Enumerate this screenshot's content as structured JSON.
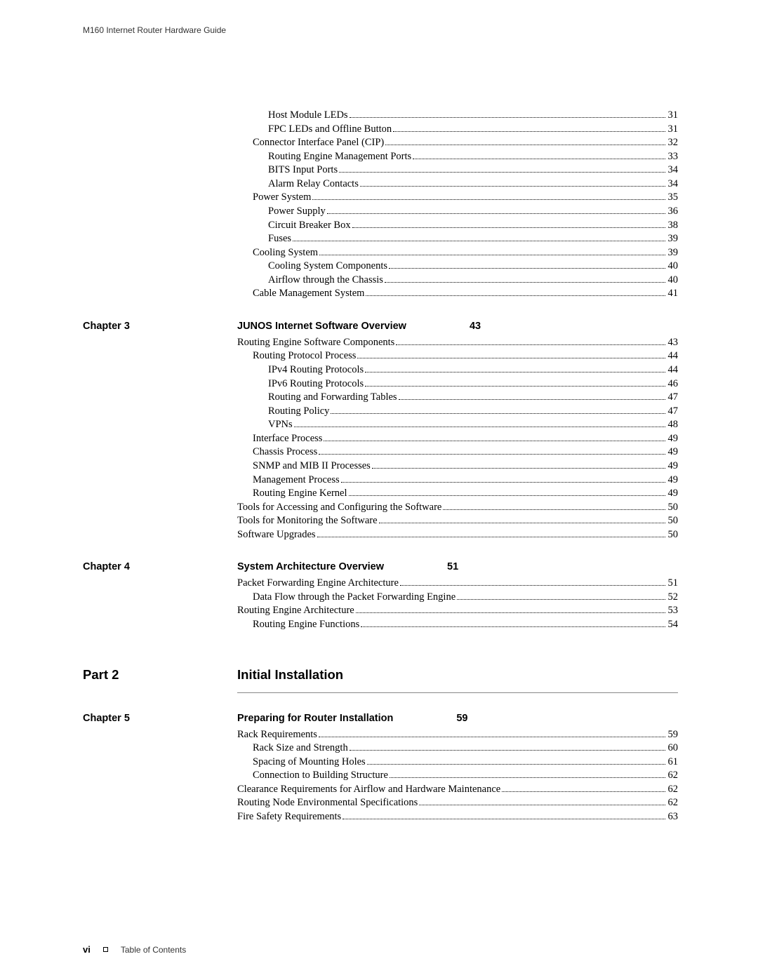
{
  "header": "M160 Internet Router Hardware Guide",
  "footer": {
    "page": "vi",
    "text": "Table of Contents"
  },
  "part": {
    "label": "Part 2",
    "title": "Initial Installation"
  },
  "chapters": {
    "pre": {
      "items": [
        {
          "indent": 2,
          "text": "Host Module LEDs",
          "page": "31"
        },
        {
          "indent": 2,
          "text": "FPC LEDs and Offline Button",
          "page": "31"
        },
        {
          "indent": 1,
          "text": "Connector Interface Panel (CIP)",
          "page": "32"
        },
        {
          "indent": 2,
          "text": "Routing Engine Management Ports",
          "page": "33"
        },
        {
          "indent": 2,
          "text": "BITS Input Ports",
          "page": "34"
        },
        {
          "indent": 2,
          "text": "Alarm Relay Contacts",
          "page": "34"
        },
        {
          "indent": 1,
          "text": "Power System",
          "page": "35"
        },
        {
          "indent": 2,
          "text": "Power Supply",
          "page": "36"
        },
        {
          "indent": 2,
          "text": "Circuit Breaker Box",
          "page": "38"
        },
        {
          "indent": 2,
          "text": "Fuses",
          "page": "39"
        },
        {
          "indent": 1,
          "text": "Cooling System",
          "page": "39"
        },
        {
          "indent": 2,
          "text": "Cooling System Components",
          "page": "40"
        },
        {
          "indent": 2,
          "text": "Airflow through the Chassis",
          "page": "40"
        },
        {
          "indent": 1,
          "text": "Cable Management System",
          "page": "41"
        }
      ]
    },
    "ch3": {
      "label": "Chapter 3",
      "title": "JUNOS Internet Software Overview",
      "page": "43",
      "items": [
        {
          "indent": 0,
          "text": "Routing Engine Software Components",
          "page": "43"
        },
        {
          "indent": 1,
          "text": "Routing Protocol Process",
          "page": "44"
        },
        {
          "indent": 2,
          "text": "IPv4 Routing Protocols",
          "page": "44"
        },
        {
          "indent": 2,
          "text": "IPv6 Routing Protocols",
          "page": "46"
        },
        {
          "indent": 2,
          "text": "Routing and Forwarding Tables",
          "page": "47"
        },
        {
          "indent": 2,
          "text": "Routing Policy",
          "page": "47"
        },
        {
          "indent": 2,
          "text": "VPNs",
          "page": "48"
        },
        {
          "indent": 1,
          "text": "Interface Process",
          "page": "49"
        },
        {
          "indent": 1,
          "text": "Chassis Process",
          "page": "49"
        },
        {
          "indent": 1,
          "text": "SNMP and MIB II Processes",
          "page": "49"
        },
        {
          "indent": 1,
          "text": "Management Process",
          "page": "49"
        },
        {
          "indent": 1,
          "text": "Routing Engine Kernel",
          "page": "49"
        },
        {
          "indent": 0,
          "text": "Tools for Accessing and Configuring the Software",
          "page": "50"
        },
        {
          "indent": 0,
          "text": "Tools for Monitoring the Software",
          "page": "50"
        },
        {
          "indent": 0,
          "text": "Software Upgrades",
          "page": "50"
        }
      ]
    },
    "ch4": {
      "label": "Chapter 4",
      "title": "System Architecture Overview",
      "page": "51",
      "items": [
        {
          "indent": 0,
          "text": "Packet Forwarding Engine Architecture",
          "page": "51"
        },
        {
          "indent": 1,
          "text": "Data Flow through the Packet Forwarding Engine",
          "page": "52"
        },
        {
          "indent": 0,
          "text": "Routing Engine Architecture",
          "page": "53"
        },
        {
          "indent": 1,
          "text": "Routing Engine Functions",
          "page": "54"
        }
      ]
    },
    "ch5": {
      "label": "Chapter 5",
      "title": "Preparing for Router Installation",
      "page": "59",
      "items": [
        {
          "indent": 0,
          "text": "Rack Requirements",
          "page": "59"
        },
        {
          "indent": 1,
          "text": "Rack Size and Strength",
          "page": "60"
        },
        {
          "indent": 1,
          "text": "Spacing of Mounting Holes",
          "page": "61"
        },
        {
          "indent": 1,
          "text": "Connection to Building Structure",
          "page": "62"
        },
        {
          "indent": 0,
          "text": "Clearance Requirements for Airflow and Hardware Maintenance",
          "page": "62"
        },
        {
          "indent": 0,
          "text": "Routing Node Environmental Specifications",
          "page": "62"
        },
        {
          "indent": 0,
          "text": "Fire Safety Requirements",
          "page": "63"
        }
      ]
    }
  }
}
